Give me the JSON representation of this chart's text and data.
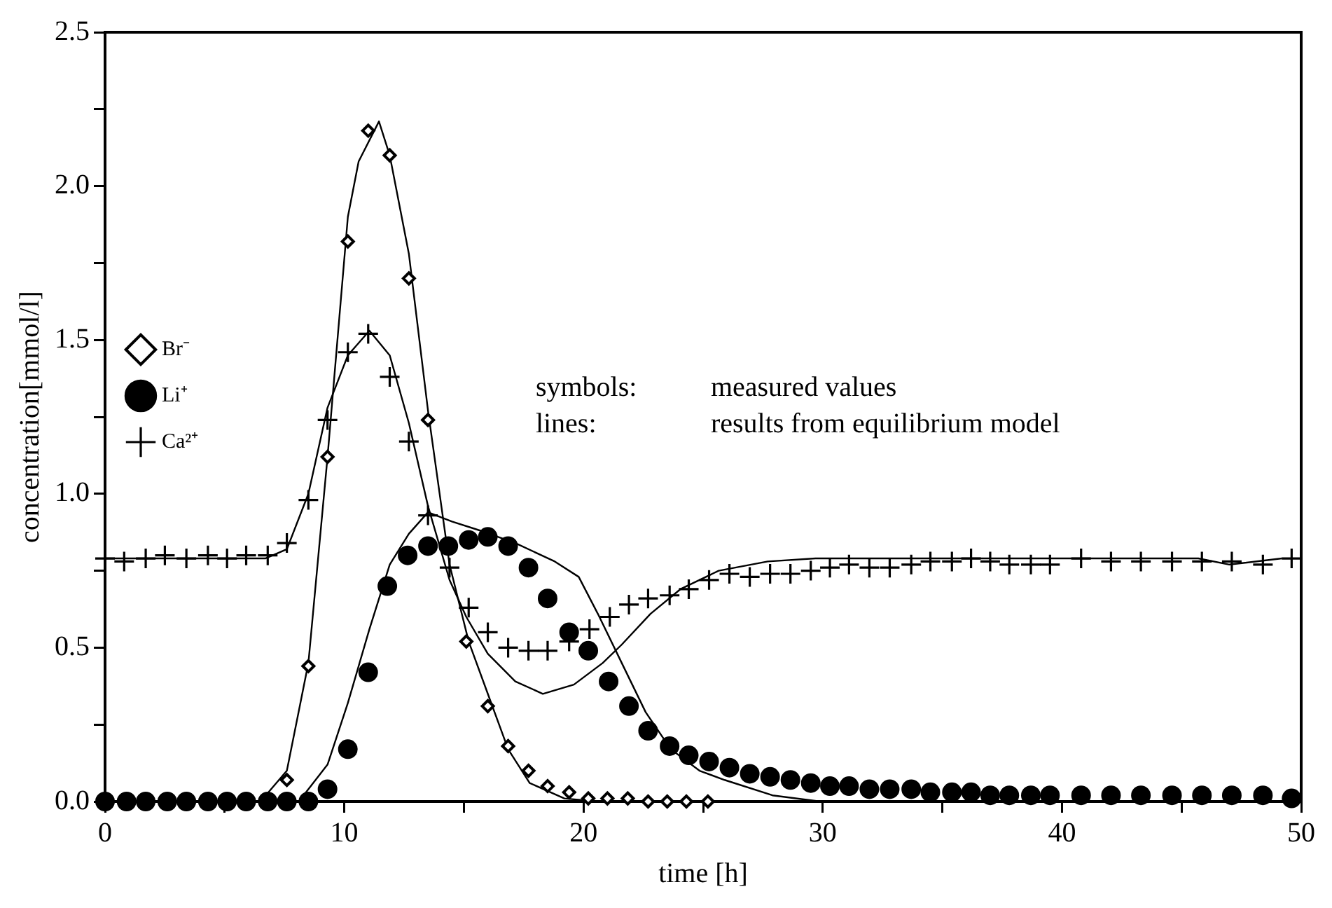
{
  "chart_data": {
    "type": "scatter",
    "xlabel": "time [h]",
    "ylabel": "concentration[mmol/l]",
    "xlim": [
      0,
      50
    ],
    "xticks": [
      0,
      {
        "value": 5,
        "label": null
      },
      10,
      {
        "value": 15,
        "label": null
      },
      20,
      {
        "value": 25,
        "label": null
      },
      30,
      {
        "value": 35,
        "label": null
      },
      40,
      {
        "value": 45,
        "label": null
      },
      50
    ],
    "ylim": [
      0,
      2.5
    ],
    "yticks": [
      {
        "value": 0,
        "label": "0.0"
      },
      {
        "value": 0.25,
        "label": null
      },
      {
        "value": 0.5,
        "label": "0.5"
      },
      {
        "value": 0.75,
        "label": null
      },
      {
        "value": 1,
        "label": "1.0"
      },
      {
        "value": 1.25,
        "label": null
      },
      {
        "value": 1.5,
        "label": "1.5"
      },
      {
        "value": 1.75,
        "label": null
      },
      {
        "value": 2,
        "label": "2.0"
      },
      {
        "value": 2.25,
        "label": null
      },
      {
        "value": 2.5,
        "label": "2.5"
      }
    ],
    "grid": false,
    "legend": "top",
    "annotations": [
      "symbols:  measured values",
      "lines:        results from equilibrium model"
    ],
    "series": [
      {
        "name": "Br⁻",
        "type": "scatter",
        "marker": "diamond",
        "color": "#000000",
        "x": [
          7.6,
          8.5,
          9.3,
          10.15,
          11.0,
          11.9,
          12.7,
          13.5,
          15.1,
          16.0,
          16.85,
          17.7,
          18.5,
          19.4,
          20.2,
          21.0,
          21.85,
          22.7,
          23.5,
          24.3,
          25.2
        ],
        "values": [
          0.07,
          0.44,
          1.12,
          1.82,
          2.18,
          2.1,
          1.7,
          1.24,
          0.52,
          0.31,
          0.18,
          0.1,
          0.05,
          0.03,
          0.01,
          0.01,
          0.01,
          0,
          0,
          0,
          0
        ]
      },
      {
        "name": "Li⁺",
        "type": "scatter",
        "marker": "circle",
        "color": "#000000",
        "x": [
          0,
          0.9,
          1.7,
          2.6,
          3.4,
          4.3,
          5.1,
          5.9,
          6.8,
          7.6,
          8.5,
          9.3,
          10.15,
          11.0,
          11.8,
          12.65,
          13.5,
          14.35,
          15.2,
          16.0,
          16.85,
          17.7,
          18.5,
          19.4,
          20.2,
          21.05,
          21.9,
          22.7,
          23.6,
          24.4,
          25.25,
          26.1,
          26.95,
          27.8,
          28.65,
          29.5,
          30.3,
          31.1,
          31.95,
          32.8,
          33.7,
          34.5,
          35.4,
          36.2,
          37.0,
          37.8,
          38.7,
          39.5,
          40.8,
          42.05,
          43.3,
          44.6,
          45.85,
          47.1,
          48.4,
          49.6
        ],
        "values": [
          0,
          0,
          0,
          0,
          0,
          0,
          0,
          0,
          0,
          0,
          0,
          0.04,
          0.17,
          0.42,
          0.7,
          0.8,
          0.83,
          0.83,
          0.85,
          0.86,
          0.83,
          0.76,
          0.66,
          0.55,
          0.49,
          0.39,
          0.31,
          0.23,
          0.18,
          0.15,
          0.13,
          0.11,
          0.09,
          0.08,
          0.07,
          0.06,
          0.05,
          0.05,
          0.04,
          0.04,
          0.04,
          0.03,
          0.03,
          0.03,
          0.02,
          0.02,
          0.02,
          0.02,
          0.02,
          0.02,
          0.02,
          0.02,
          0.02,
          0.02,
          0.02,
          0.01
        ]
      },
      {
        "name": "Ca²⁺",
        "type": "scatter",
        "marker": "cross",
        "color": "#000000",
        "x": [
          0,
          0.8,
          1.7,
          2.5,
          3.4,
          4.3,
          5.1,
          5.9,
          6.8,
          7.6,
          8.5,
          9.3,
          10.15,
          11.0,
          11.9,
          12.7,
          13.5,
          14.4,
          15.2,
          16.0,
          16.85,
          17.7,
          18.5,
          19.4,
          20.25,
          21.1,
          21.9,
          22.7,
          23.6,
          24.4,
          25.25,
          26.1,
          26.95,
          27.8,
          28.65,
          29.5,
          30.3,
          31.1,
          31.95,
          32.8,
          33.7,
          34.5,
          35.4,
          36.2,
          37.0,
          37.8,
          38.7,
          39.5,
          40.8,
          42.05,
          43.3,
          44.6,
          45.85,
          47.1,
          48.4,
          49.6
        ],
        "values": [
          0.79,
          0.78,
          0.79,
          0.8,
          0.79,
          0.8,
          0.79,
          0.8,
          0.8,
          0.84,
          0.98,
          1.24,
          1.46,
          1.52,
          1.38,
          1.17,
          0.93,
          0.76,
          0.63,
          0.55,
          0.5,
          0.49,
          0.49,
          0.52,
          0.56,
          0.6,
          0.64,
          0.66,
          0.67,
          0.69,
          0.72,
          0.74,
          0.73,
          0.74,
          0.74,
          0.75,
          0.76,
          0.77,
          0.76,
          0.76,
          0.77,
          0.78,
          0.78,
          0.79,
          0.78,
          0.77,
          0.77,
          0.77,
          0.79,
          0.78,
          0.78,
          0.78,
          0.78,
          0.78,
          0.77,
          0.79
        ]
      },
      {
        "type": "line",
        "marker": "none",
        "color": "#000000",
        "x": [
          0,
          6.5,
          7.6,
          8.5,
          9.3,
          10.15,
          10.6,
          11.45,
          11.9,
          12.7,
          13.5,
          14.4,
          15.2,
          16.0,
          16.85,
          17.75,
          19.2,
          20.6,
          25
        ],
        "values": [
          0,
          0,
          0.1,
          0.45,
          1.12,
          1.9,
          2.08,
          2.21,
          2.1,
          1.78,
          1.27,
          0.77,
          0.52,
          0.35,
          0.17,
          0.06,
          0.01,
          0,
          0
        ]
      },
      {
        "type": "line",
        "marker": "none",
        "color": "#000000",
        "x": [
          0,
          8.1,
          9.3,
          10.15,
          11.05,
          11.9,
          12.7,
          13.5,
          14.5,
          15.7,
          17.15,
          18.8,
          19.8,
          20.6,
          21.6,
          22.6,
          23.65,
          24.85,
          25.9,
          27.9,
          29.9
        ],
        "values": [
          0,
          0,
          0.12,
          0.32,
          0.56,
          0.77,
          0.87,
          0.94,
          0.91,
          0.88,
          0.84,
          0.78,
          0.73,
          0.61,
          0.45,
          0.29,
          0.17,
          0.1,
          0.07,
          0.02,
          0
        ]
      },
      {
        "type": "line",
        "marker": "none",
        "color": "#000000",
        "x": [
          0,
          6.7,
          7.6,
          8.5,
          9.3,
          10.15,
          11.05,
          11.9,
          12.7,
          13.5,
          14.4,
          15.1,
          16.0,
          17.15,
          18.3,
          19.6,
          20.8,
          21.6,
          22.8,
          24.05,
          25.65,
          27.7,
          29.7,
          30.5,
          36.2,
          42.1,
          45.7,
          47.0,
          49.2
        ],
        "values": [
          0.79,
          0.79,
          0.82,
          1.0,
          1.28,
          1.45,
          1.53,
          1.45,
          1.23,
          0.96,
          0.72,
          0.6,
          0.48,
          0.39,
          0.35,
          0.38,
          0.45,
          0.51,
          0.61,
          0.69,
          0.75,
          0.78,
          0.79,
          0.79,
          0.79,
          0.79,
          0.79,
          0.77,
          0.79
        ]
      }
    ]
  }
}
